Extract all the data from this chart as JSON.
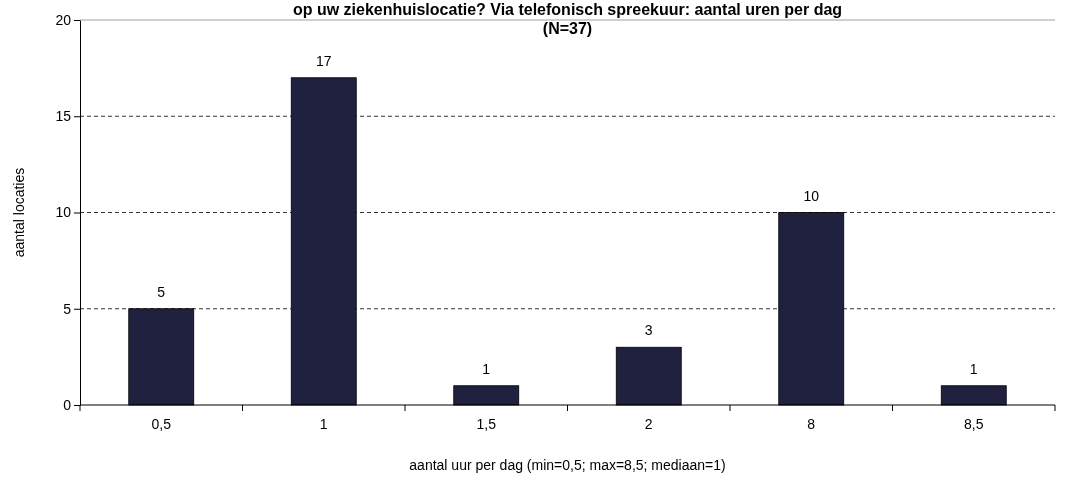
{
  "chart_data": {
    "type": "bar",
    "title": "op uw ziekenhuislocatie? Via telefonisch spreekuur: aantal uren per dag\n(N=37)",
    "xlabel": "aantal uur per dag (min=0,5; max=8,5; mediaan=1)",
    "ylabel": "aantal locaties",
    "categories": [
      "0,5",
      "1",
      "1,5",
      "2",
      "8",
      "8,5"
    ],
    "values": [
      5,
      17,
      1,
      3,
      10,
      1
    ],
    "color": "#20203f",
    "ylim": [
      0,
      20
    ],
    "yticks": [
      0,
      5,
      10,
      15,
      20
    ],
    "grid": "y",
    "data_labels": true
  }
}
